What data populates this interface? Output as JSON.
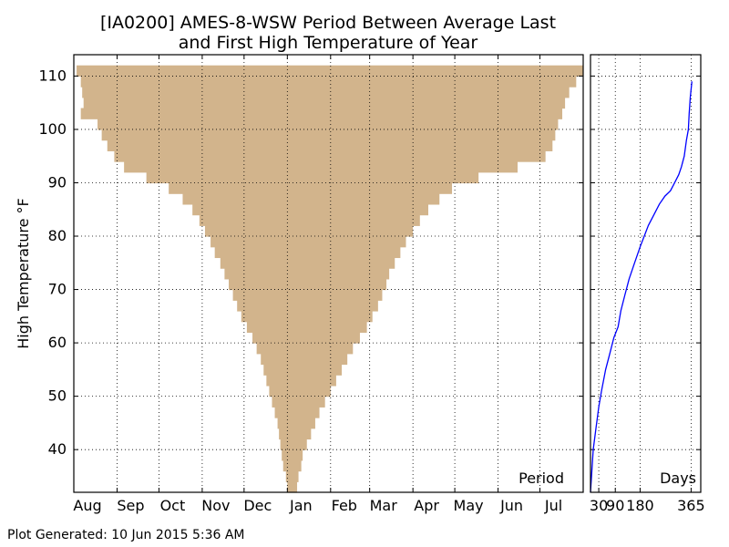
{
  "chart_data": [
    {
      "type": "bar",
      "orientation": "horizontal",
      "title_lines": [
        "[IA0200] AMES-8-WSW Period Between Average Last",
        "and First High Temperature of Year"
      ],
      "ylabel": "High Temperature °F",
      "panel_label": "Period",
      "xlim": [
        0,
        365
      ],
      "ylim": [
        32,
        114
      ],
      "yticks": [
        40,
        50,
        60,
        70,
        80,
        90,
        100,
        110
      ],
      "month_ticks": [
        {
          "label": "Aug",
          "day": 0
        },
        {
          "label": "Sep",
          "day": 31
        },
        {
          "label": "Oct",
          "day": 61
        },
        {
          "label": "Nov",
          "day": 92
        },
        {
          "label": "Dec",
          "day": 122
        },
        {
          "label": "Jan",
          "day": 153
        },
        {
          "label": "Feb",
          "day": 184
        },
        {
          "label": "Mar",
          "day": 212
        },
        {
          "label": "Apr",
          "day": 243
        },
        {
          "label": "May",
          "day": 273
        },
        {
          "label": "Jun",
          "day": 304
        },
        {
          "label": "Jul",
          "day": 334
        }
      ],
      "bar_color": "#d2b48c",
      "grid": true,
      "bars": [
        {
          "temp": 32,
          "start": 153,
          "end": 160
        },
        {
          "temp": 34,
          "start": 152,
          "end": 161
        },
        {
          "temp": 36,
          "start": 150,
          "end": 163
        },
        {
          "temp": 38,
          "start": 149,
          "end": 164
        },
        {
          "temp": 40,
          "start": 148,
          "end": 167
        },
        {
          "temp": 42,
          "start": 147,
          "end": 170
        },
        {
          "temp": 44,
          "start": 146,
          "end": 173
        },
        {
          "temp": 46,
          "start": 144,
          "end": 176
        },
        {
          "temp": 48,
          "start": 142,
          "end": 180
        },
        {
          "temp": 50,
          "start": 140,
          "end": 184
        },
        {
          "temp": 52,
          "start": 138,
          "end": 188
        },
        {
          "temp": 54,
          "start": 136,
          "end": 192
        },
        {
          "temp": 56,
          "start": 134,
          "end": 196
        },
        {
          "temp": 58,
          "start": 131,
          "end": 200
        },
        {
          "temp": 60,
          "start": 128,
          "end": 205
        },
        {
          "temp": 62,
          "start": 124,
          "end": 210
        },
        {
          "temp": 64,
          "start": 120,
          "end": 214
        },
        {
          "temp": 66,
          "start": 117,
          "end": 218
        },
        {
          "temp": 68,
          "start": 114,
          "end": 221
        },
        {
          "temp": 70,
          "start": 111,
          "end": 224
        },
        {
          "temp": 72,
          "start": 108,
          "end": 226
        },
        {
          "temp": 74,
          "start": 105,
          "end": 230
        },
        {
          "temp": 76,
          "start": 101,
          "end": 234
        },
        {
          "temp": 78,
          "start": 98,
          "end": 238
        },
        {
          "temp": 80,
          "start": 94,
          "end": 243
        },
        {
          "temp": 82,
          "start": 90,
          "end": 248
        },
        {
          "temp": 84,
          "start": 85,
          "end": 254
        },
        {
          "temp": 86,
          "start": 78,
          "end": 262
        },
        {
          "temp": 88,
          "start": 68,
          "end": 271
        },
        {
          "temp": 90,
          "start": 52,
          "end": 290
        },
        {
          "temp": 92,
          "start": 36,
          "end": 318
        },
        {
          "temp": 94,
          "start": 29,
          "end": 338
        },
        {
          "temp": 96,
          "start": 24,
          "end": 343
        },
        {
          "temp": 98,
          "start": 20,
          "end": 345
        },
        {
          "temp": 100,
          "start": 17,
          "end": 347
        },
        {
          "temp": 102,
          "start": 5,
          "end": 350
        },
        {
          "temp": 104,
          "start": 7,
          "end": 352
        },
        {
          "temp": 106,
          "start": 6,
          "end": 355
        },
        {
          "temp": 108,
          "start": 5,
          "end": 360
        },
        {
          "temp": 110,
          "start": 2,
          "end": 365
        }
      ]
    },
    {
      "type": "line",
      "panel_label": "Days",
      "xlim": [
        0,
        400
      ],
      "xticks": [
        30,
        90,
        180,
        365
      ],
      "ylim": [
        32,
        114
      ],
      "line_color": "#0000ff",
      "x": [
        0,
        5,
        10,
        15,
        20,
        30,
        40,
        55,
        70,
        85,
        100,
        110,
        125,
        140,
        160,
        180,
        195,
        210,
        230,
        250,
        270,
        290,
        300,
        310,
        320,
        330,
        340,
        348,
        355,
        358,
        362,
        368
      ],
      "y": [
        32,
        36,
        40,
        42,
        44,
        48,
        51,
        55,
        58,
        61,
        63,
        66,
        69,
        72,
        75,
        78,
        80,
        82,
        84,
        86,
        87.5,
        88.5,
        89.5,
        90.5,
        91.5,
        93,
        95,
        98,
        100,
        103,
        106,
        109
      ]
    }
  ],
  "footer": {
    "generated": "Plot Generated: 10 Jun 2015 5:36 AM"
  }
}
